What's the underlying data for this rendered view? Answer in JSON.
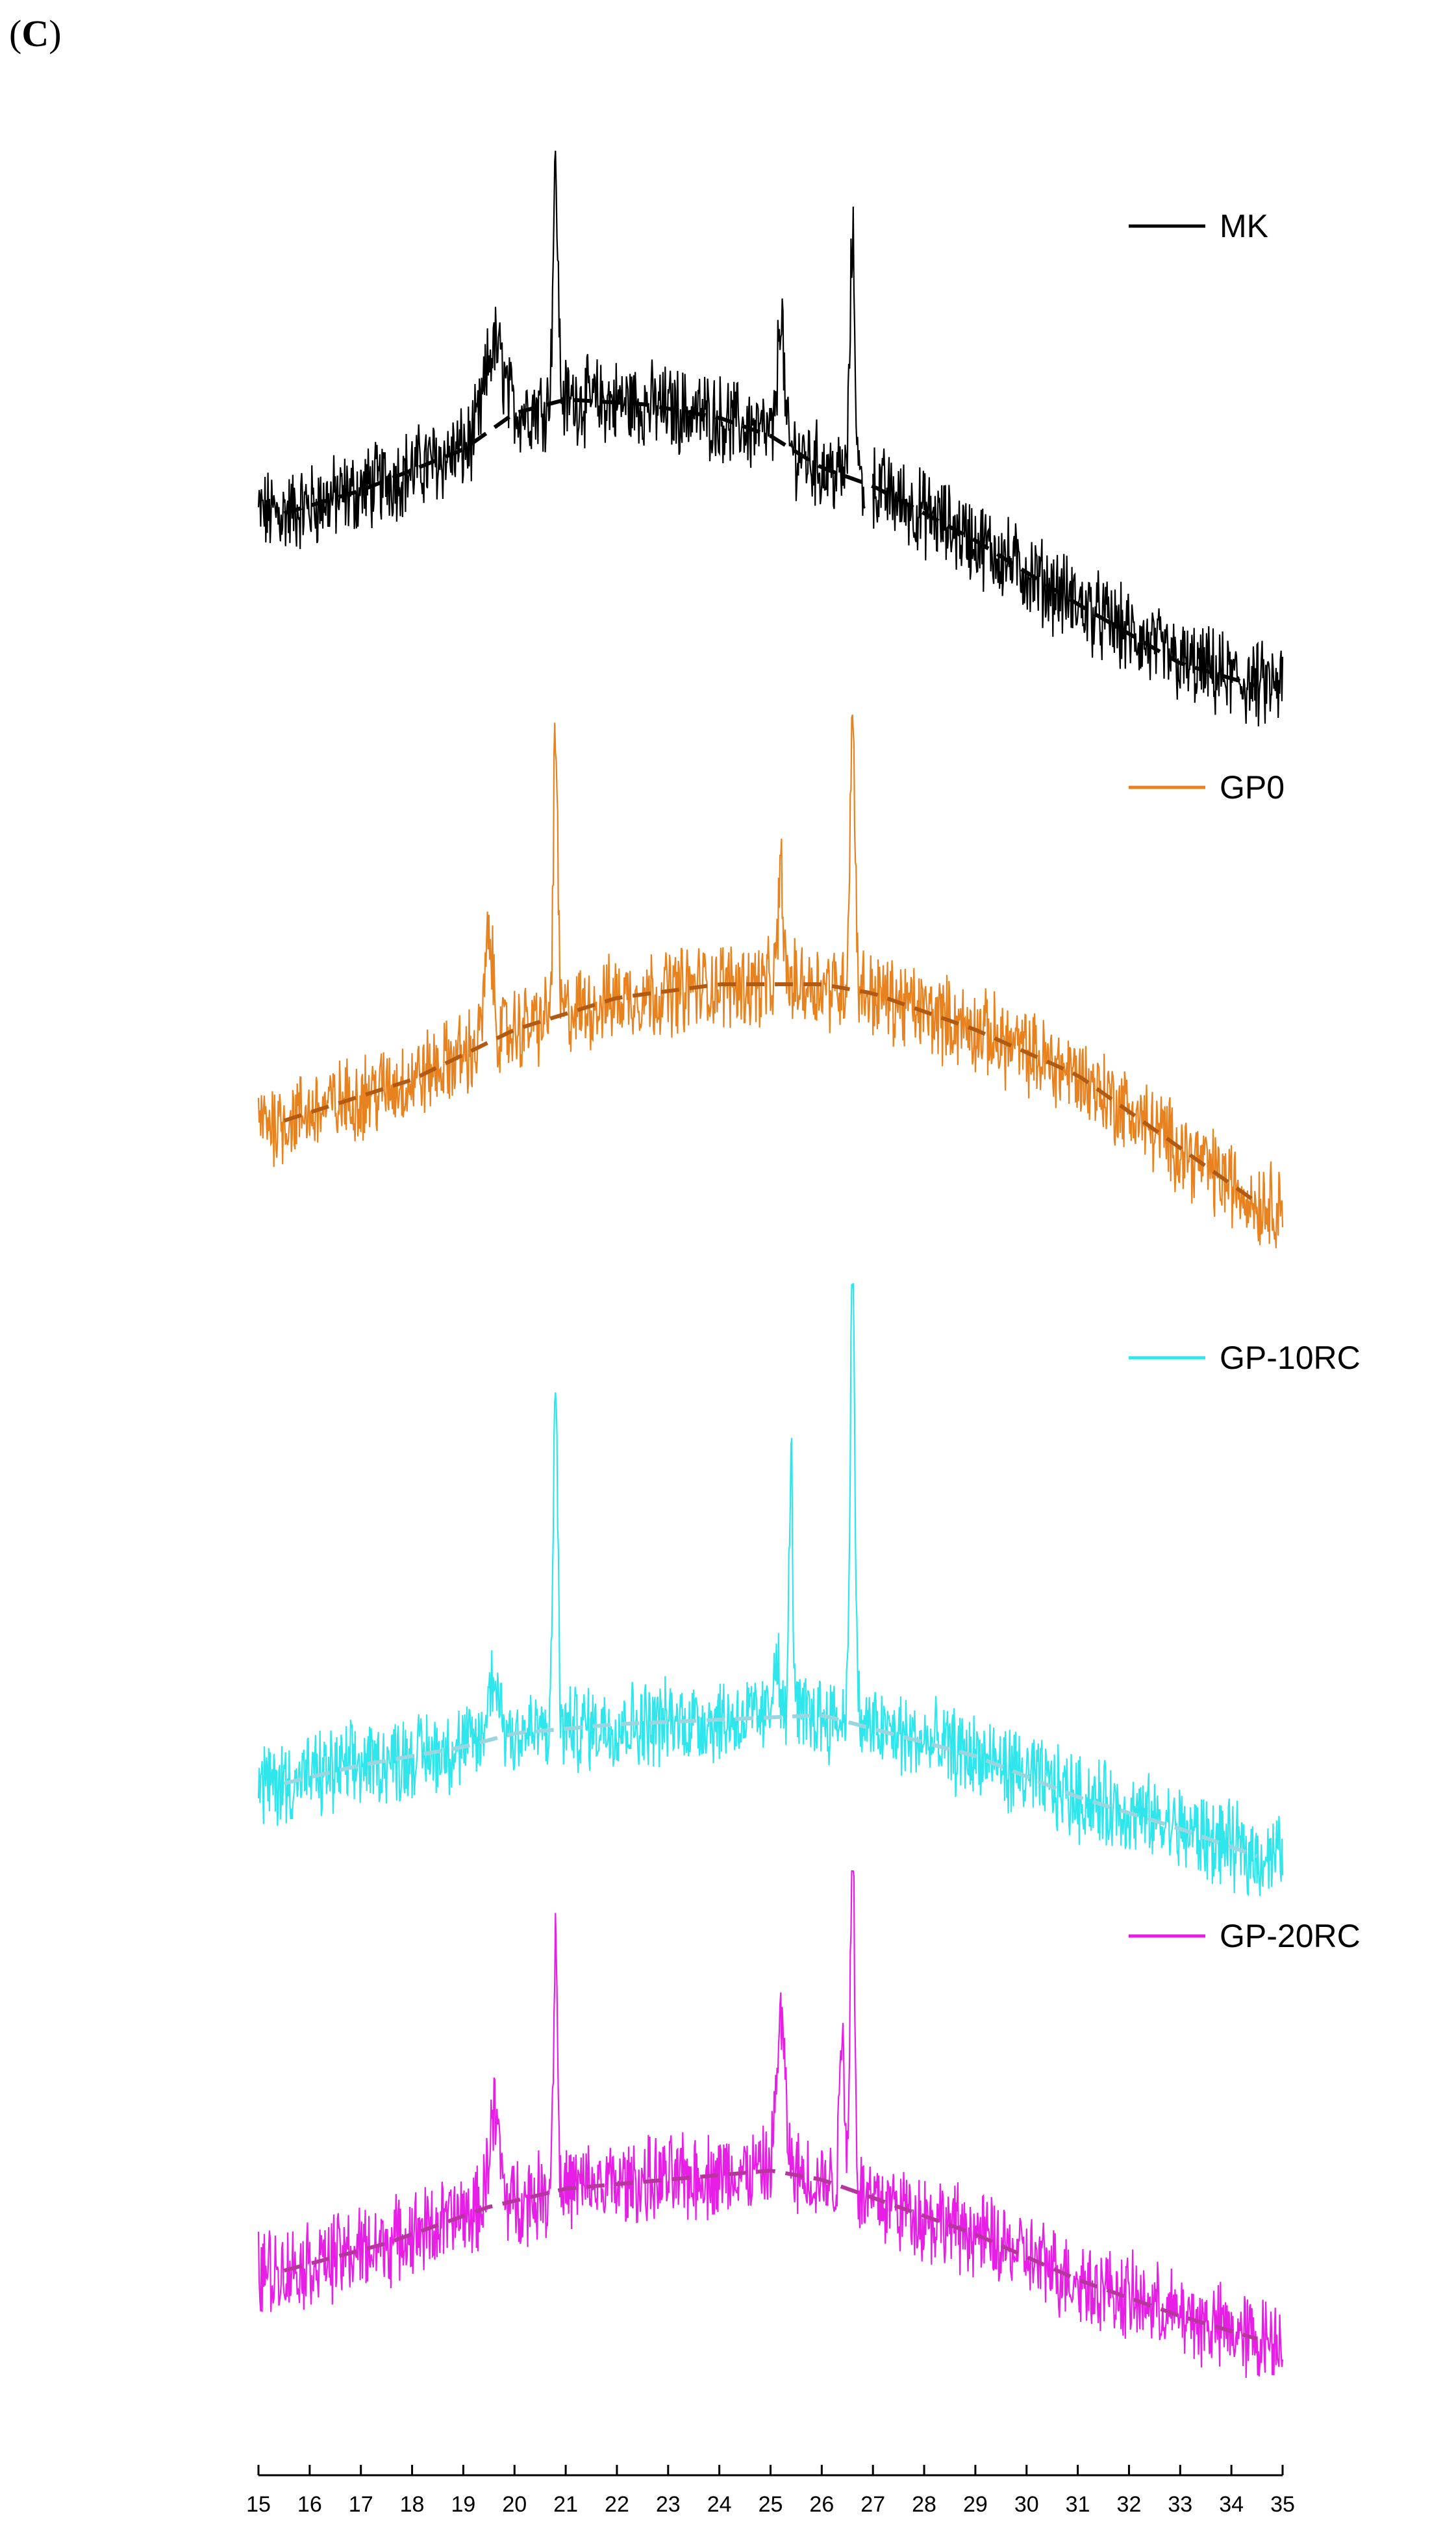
{
  "panel_label": {
    "open": "(",
    "letter": "C",
    "close": ")"
  },
  "chart_data": {
    "type": "line",
    "title": "",
    "xlabel": "",
    "ylabel": "",
    "xlim": [
      15,
      35
    ],
    "x_ticks": [
      "15",
      "16",
      "17",
      "18",
      "19",
      "20",
      "21",
      "22",
      "23",
      "24",
      "25",
      "26",
      "27",
      "28",
      "29",
      "30",
      "31",
      "32",
      "33",
      "34",
      "35"
    ],
    "y_axis_shown": false,
    "grid": false,
    "legend": "right of each trace",
    "series": [
      {
        "name": "MK",
        "color": "#000000",
        "baseline_color": "#000000",
        "baseline": [
          [
            15.5,
            0.0
          ],
          [
            17,
            0.05
          ],
          [
            19,
            0.14
          ],
          [
            20,
            0.22
          ],
          [
            21,
            0.25
          ],
          [
            22.5,
            0.24
          ],
          [
            24,
            0.21
          ],
          [
            25,
            0.17
          ],
          [
            26,
            0.1
          ],
          [
            27,
            0.06
          ],
          [
            29,
            -0.06
          ],
          [
            31,
            -0.2
          ],
          [
            33,
            -0.33
          ],
          [
            34.5,
            -0.38
          ]
        ],
        "peaks": [
          [
            19.6,
            0.18,
            0.25
          ],
          [
            20.8,
            0.5,
            0.07
          ],
          [
            25.2,
            0.3,
            0.08
          ],
          [
            26.6,
            0.52,
            0.07
          ]
        ],
        "clip_above": 0.52,
        "gap": [
          26.85,
          27.0
        ]
      },
      {
        "name": "GP0",
        "color": "#e8821e",
        "baseline_color": "#b35a12",
        "baseline": [
          [
            15.5,
            0.0
          ],
          [
            18,
            0.09
          ],
          [
            20,
            0.2
          ],
          [
            22,
            0.27
          ],
          [
            24,
            0.3
          ],
          [
            26,
            0.3
          ],
          [
            27,
            0.28
          ],
          [
            29,
            0.2
          ],
          [
            31,
            0.1
          ],
          [
            33,
            -0.06
          ],
          [
            34.5,
            -0.18
          ]
        ],
        "peaks": [
          [
            19.5,
            0.22,
            0.12
          ],
          [
            20.8,
            0.62,
            0.06
          ],
          [
            25.2,
            0.25,
            0.07
          ],
          [
            26.6,
            0.6,
            0.07
          ]
        ],
        "clip_above": 0.52,
        "gap": []
      },
      {
        "name": "GP-10RC",
        "color": "#2ee6ec",
        "baseline_color": "#9ad6e0",
        "baseline": [
          [
            15.5,
            0.0
          ],
          [
            17,
            0.04
          ],
          [
            19,
            0.08
          ],
          [
            20,
            0.11
          ],
          [
            22,
            0.13
          ],
          [
            24,
            0.14
          ],
          [
            26,
            0.15
          ],
          [
            27,
            0.12
          ],
          [
            29,
            0.06
          ],
          [
            31,
            -0.03
          ],
          [
            33,
            -0.1
          ],
          [
            34.5,
            -0.16
          ]
        ],
        "peaks": [
          [
            19.6,
            0.14,
            0.15
          ],
          [
            20.8,
            0.78,
            0.06
          ],
          [
            25.1,
            0.15,
            0.08
          ],
          [
            25.4,
            0.58,
            0.05
          ],
          [
            26.6,
            0.95,
            0.07
          ]
        ],
        "clip_above": 0.8,
        "gap": []
      },
      {
        "name": "GP-20RC",
        "color": "#e61ee6",
        "baseline_color": "#b8359e",
        "baseline": [
          [
            15.5,
            0.0
          ],
          [
            17.5,
            0.06
          ],
          [
            19.5,
            0.14
          ],
          [
            21,
            0.18
          ],
          [
            23,
            0.2
          ],
          [
            25,
            0.22
          ],
          [
            26,
            0.2
          ],
          [
            27,
            0.16
          ],
          [
            29,
            0.08
          ],
          [
            31,
            -0.02
          ],
          [
            33,
            -0.1
          ],
          [
            34.5,
            -0.15
          ]
        ],
        "peaks": [
          [
            19.6,
            0.2,
            0.15
          ],
          [
            20.8,
            0.55,
            0.06
          ],
          [
            25.2,
            0.33,
            0.12
          ],
          [
            26.4,
            0.35,
            0.07
          ],
          [
            26.6,
            0.8,
            0.06
          ]
        ],
        "clip_above": 0.7,
        "gap": []
      }
    ]
  }
}
